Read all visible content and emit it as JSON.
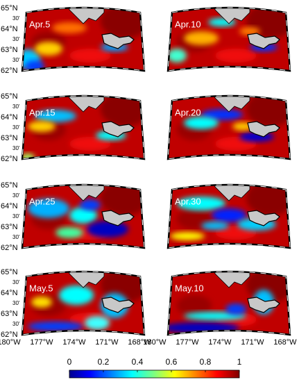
{
  "panels": [
    {
      "label": "Apr.5"
    },
    {
      "label": "Apr.10"
    },
    {
      "label": "Apr.15"
    },
    {
      "label": "Apr.20"
    },
    {
      "label": "Apr.25"
    },
    {
      "label": "Apr.30"
    },
    {
      "label": "May.5"
    },
    {
      "label": "May.10"
    }
  ],
  "lat_labels": [
    "65°N",
    "30'",
    "64°N",
    "30'",
    "63°N",
    "30'",
    "62°N"
  ],
  "lon_labels": [
    "180°W",
    "177°W",
    "174°W",
    "171°W",
    "168°W"
  ],
  "colorbar": {
    "range": [
      0,
      1
    ],
    "ticks": [
      0,
      0.2,
      0.4,
      0.6,
      0.8,
      1
    ]
  }
}
